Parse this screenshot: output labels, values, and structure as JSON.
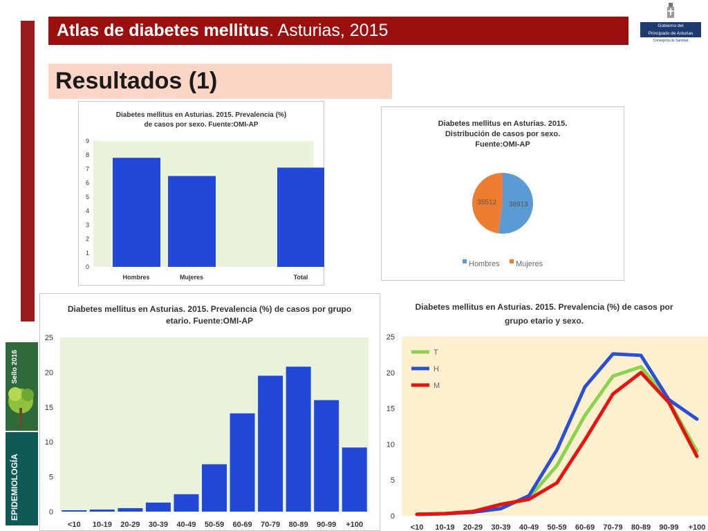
{
  "header": {
    "title_bold": "Atlas de diabetes mellitus",
    "title_rest": ". Asturias, 2015"
  },
  "logo": {
    "line1": "Gobierno del",
    "line2": "Principado de Asturias",
    "line3": "Consejería de Sanidad"
  },
  "section_title": "Resultados (1)",
  "badges": {
    "top": "Sello 2016",
    "bottom": "EPIDEMIOLOGÍA"
  },
  "colors": {
    "bar_blue": "#2148d6",
    "plot_bg_green": "#e8f3da",
    "plot_bg_yellow": "#fdf0cf",
    "pie_blue": "#5b9bd5",
    "pie_orange": "#ed7d31",
    "line_T": "#8ad34f",
    "line_H": "#2a4fd4",
    "line_M": "#e8130f"
  },
  "chart_data": [
    {
      "type": "bar",
      "title": "Diabetes mellitus en Asturias. 2015. Prevalencia (%) de casos por sexo. Fuente:OMI-AP",
      "categories": [
        "Hombres",
        "Mujeres",
        "Total"
      ],
      "values": [
        7.8,
        6.5,
        7.1
      ],
      "ylim": [
        0,
        9
      ],
      "yticks": [
        0,
        1,
        2,
        3,
        4,
        5,
        6,
        7,
        8,
        9
      ],
      "grid": false
    },
    {
      "type": "pie",
      "title": "Diabetes mellitus en Asturias. 2015. Distribución de casos por sexo. Fuente:OMI-AP",
      "labels": [
        "Hombres",
        "Mujeres"
      ],
      "values": [
        38913,
        35512
      ],
      "legend": "bottom"
    },
    {
      "type": "bar",
      "title": "Diabetes mellitus en Asturias. 2015. Prevalencia (%) de casos por grupo etario. Fuente:OMI-AP",
      "categories": [
        "<10",
        "10-19",
        "20-29",
        "30-39",
        "40-49",
        "50-59",
        "60-69",
        "70-79",
        "80-89",
        "90-99",
        "+100"
      ],
      "values": [
        0.2,
        0.3,
        0.5,
        1.3,
        2.5,
        6.8,
        14.1,
        19.5,
        20.8,
        16.0,
        9.2
      ],
      "ylim": [
        0,
        25
      ],
      "yticks": [
        0,
        5,
        10,
        15,
        20,
        25
      ],
      "grid": false
    },
    {
      "type": "line",
      "title": "Diabetes mellitus en Asturias. 2015. Prevalencia (%) de casos por grupo etario y sexo.",
      "categories": [
        "<10",
        "10-19",
        "20-29",
        "30-39",
        "40-49",
        "50-59",
        "60-69",
        "70-79",
        "80-89",
        "90-99",
        "+100"
      ],
      "series": [
        {
          "name": "T",
          "values": [
            0.2,
            0.3,
            0.5,
            1.3,
            2.5,
            7.0,
            14.0,
            19.5,
            20.8,
            16.0,
            9.0
          ]
        },
        {
          "name": "H",
          "values": [
            0.2,
            0.3,
            0.5,
            1.0,
            2.8,
            9.2,
            18.0,
            22.6,
            22.4,
            16.2,
            13.5
          ]
        },
        {
          "name": "M",
          "values": [
            0.2,
            0.3,
            0.6,
            1.6,
            2.3,
            4.6,
            10.6,
            17.0,
            20.0,
            15.8,
            8.3
          ]
        }
      ],
      "ylim": [
        0,
        25
      ],
      "yticks": [
        0,
        5,
        10,
        15,
        20,
        25
      ],
      "legend": "top-left",
      "grid": false
    }
  ]
}
